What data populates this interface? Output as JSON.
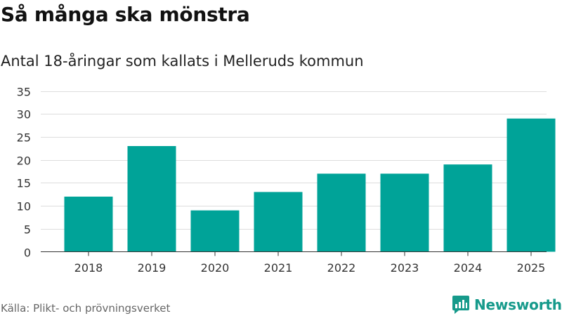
{
  "header": {
    "title": "Så många ska mönstra",
    "subtitle": "Antal 18-åringar som kallats i Melleruds kommun"
  },
  "footer": {
    "source": "Källa: Plikt- och prövningsverket",
    "brand": "Newsworthy"
  },
  "colors": {
    "bar": "#00a398",
    "brand": "#169a8b",
    "grid": "#dddddd",
    "axis": "#333333"
  },
  "icons": {
    "brand_logo": "newsworthy-logo-icon"
  },
  "chart_data": {
    "type": "bar",
    "title": "Så många ska mönstra",
    "subtitle": "Antal 18-åringar som kallats i Melleruds kommun",
    "xlabel": "",
    "ylabel": "",
    "categories": [
      "2018",
      "2019",
      "2020",
      "2021",
      "2022",
      "2023",
      "2024",
      "2025"
    ],
    "values": [
      12,
      23,
      9,
      13,
      17,
      17,
      19,
      29
    ],
    "ylim": [
      0,
      35
    ],
    "yticks": [
      0,
      5,
      10,
      15,
      20,
      25,
      30,
      35
    ],
    "grid": true,
    "legend": "none"
  }
}
